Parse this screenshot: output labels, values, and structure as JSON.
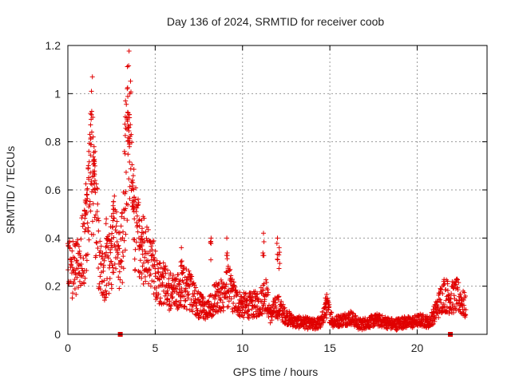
{
  "chart_data": {
    "type": "scatter",
    "title": "Day 136 of 2024, SRMTID for receiver coob",
    "xlabel": "GPS time / hours",
    "ylabel": "SRMTID / TECUs",
    "xlim": [
      0,
      24
    ],
    "ylim": [
      0,
      1.2
    ],
    "grid": true,
    "marker": "plus",
    "color": "#e00000",
    "x_ticks": [
      0,
      5,
      10,
      15,
      20
    ],
    "x_tick_labels": [
      "0",
      "5",
      "10",
      "15",
      "20"
    ],
    "y_ticks": [
      0,
      0.2,
      0.4,
      0.6,
      0.8,
      1.0,
      1.2
    ],
    "y_tick_labels": [
      "0",
      "0.2",
      "0.4",
      "0.6",
      "0.8",
      "1",
      "1.2"
    ],
    "trend_points": [
      [
        0.0,
        0.28
      ],
      [
        0.3,
        0.27
      ],
      [
        0.6,
        0.3
      ],
      [
        0.9,
        0.36
      ],
      [
        1.1,
        0.5
      ],
      [
        1.3,
        0.65
      ],
      [
        1.4,
        0.75
      ],
      [
        1.6,
        0.55
      ],
      [
        1.8,
        0.3
      ],
      [
        2.1,
        0.25
      ],
      [
        2.4,
        0.3
      ],
      [
        2.7,
        0.42
      ],
      [
        3.0,
        0.28
      ],
      [
        3.2,
        0.45
      ],
      [
        3.4,
        0.85
      ],
      [
        3.5,
        0.95
      ],
      [
        3.7,
        0.6
      ],
      [
        3.9,
        0.42
      ],
      [
        4.2,
        0.36
      ],
      [
        4.5,
        0.32
      ],
      [
        4.9,
        0.28
      ],
      [
        5.3,
        0.22
      ],
      [
        5.8,
        0.18
      ],
      [
        6.2,
        0.17
      ],
      [
        6.6,
        0.2
      ],
      [
        7.0,
        0.18
      ],
      [
        7.5,
        0.12
      ],
      [
        8.0,
        0.1
      ],
      [
        8.4,
        0.15
      ],
      [
        8.8,
        0.16
      ],
      [
        9.2,
        0.2
      ],
      [
        9.6,
        0.14
      ],
      [
        10.0,
        0.12
      ],
      [
        10.5,
        0.12
      ],
      [
        11.0,
        0.13
      ],
      [
        11.3,
        0.18
      ],
      [
        11.6,
        0.08
      ],
      [
        12.0,
        0.12
      ],
      [
        12.4,
        0.08
      ],
      [
        13.0,
        0.05
      ],
      [
        13.5,
        0.05
      ],
      [
        14.0,
        0.04
      ],
      [
        14.5,
        0.05
      ],
      [
        14.8,
        0.12
      ],
      [
        15.2,
        0.05
      ],
      [
        15.7,
        0.06
      ],
      [
        16.2,
        0.07
      ],
      [
        16.7,
        0.04
      ],
      [
        17.2,
        0.05
      ],
      [
        17.7,
        0.06
      ],
      [
        18.2,
        0.05
      ],
      [
        18.7,
        0.04
      ],
      [
        19.2,
        0.05
      ],
      [
        19.7,
        0.05
      ],
      [
        20.2,
        0.06
      ],
      [
        20.7,
        0.05
      ],
      [
        21.1,
        0.1
      ],
      [
        21.5,
        0.17
      ],
      [
        21.9,
        0.15
      ],
      [
        22.3,
        0.16
      ],
      [
        22.8,
        0.11
      ]
    ],
    "peaks": [
      [
        1.0,
        0.55
      ],
      [
        1.1,
        0.6
      ],
      [
        1.2,
        0.76
      ],
      [
        1.3,
        0.87
      ],
      [
        1.35,
        1.01
      ],
      [
        1.45,
        0.82
      ],
      [
        1.5,
        0.78
      ],
      [
        1.55,
        0.7
      ],
      [
        2.2,
        0.48
      ],
      [
        2.5,
        0.49
      ],
      [
        2.6,
        0.52
      ],
      [
        3.3,
        0.97
      ],
      [
        3.4,
        1.02
      ],
      [
        3.45,
        0.92
      ],
      [
        3.5,
        0.86
      ],
      [
        3.55,
        1.0
      ],
      [
        3.7,
        0.64
      ],
      [
        3.8,
        0.57
      ],
      [
        4.1,
        0.45
      ],
      [
        4.25,
        0.44
      ],
      [
        6.5,
        0.36
      ],
      [
        8.2,
        0.4
      ],
      [
        9.1,
        0.4
      ],
      [
        11.2,
        0.42
      ],
      [
        12.0,
        0.4
      ],
      [
        12.1,
        0.36
      ],
      [
        14.8,
        0.15
      ]
    ],
    "filled_markers": [
      [
        3.0,
        0.0
      ],
      [
        21.9,
        0.0
      ]
    ]
  }
}
